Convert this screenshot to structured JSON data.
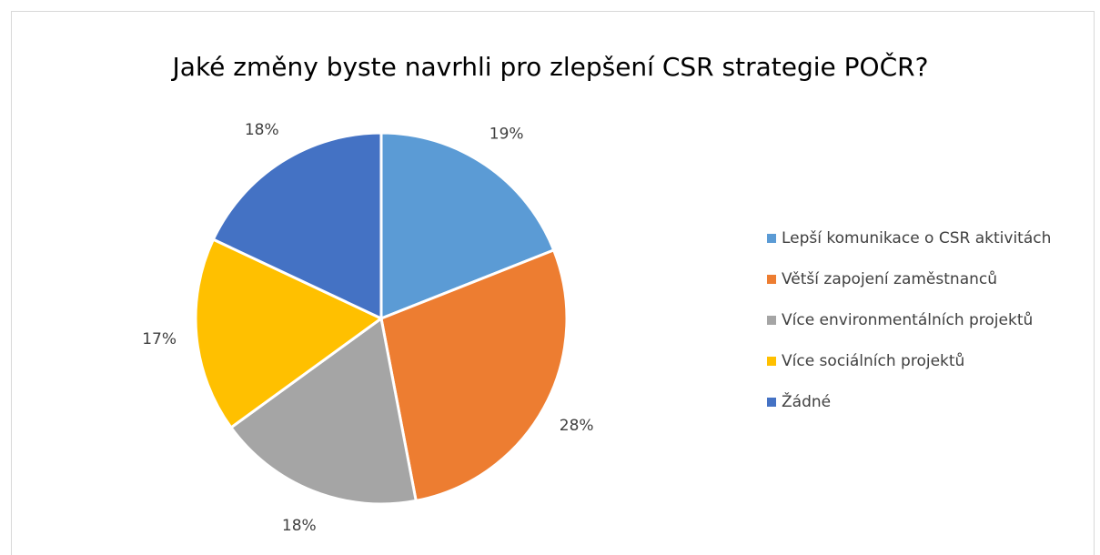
{
  "chart_data": {
    "type": "pie",
    "title": "Jaké změny byste navrhli pro zlepšení CSR strategie POČR?",
    "categories": [
      "Lepší komunikace o CSR aktivitách",
      "Větší zapojení zaměstnanců",
      "Více environmentálních projektů",
      "Více sociálních projektů",
      "Žádné"
    ],
    "values": [
      19,
      28,
      18,
      17,
      18
    ],
    "value_labels": [
      "19%",
      "28%",
      "18%",
      "17%",
      "18%"
    ],
    "colors": [
      "#5b9bd5",
      "#ed7d31",
      "#a5a5a5",
      "#ffc000",
      "#4472c4"
    ],
    "legend": "right"
  }
}
